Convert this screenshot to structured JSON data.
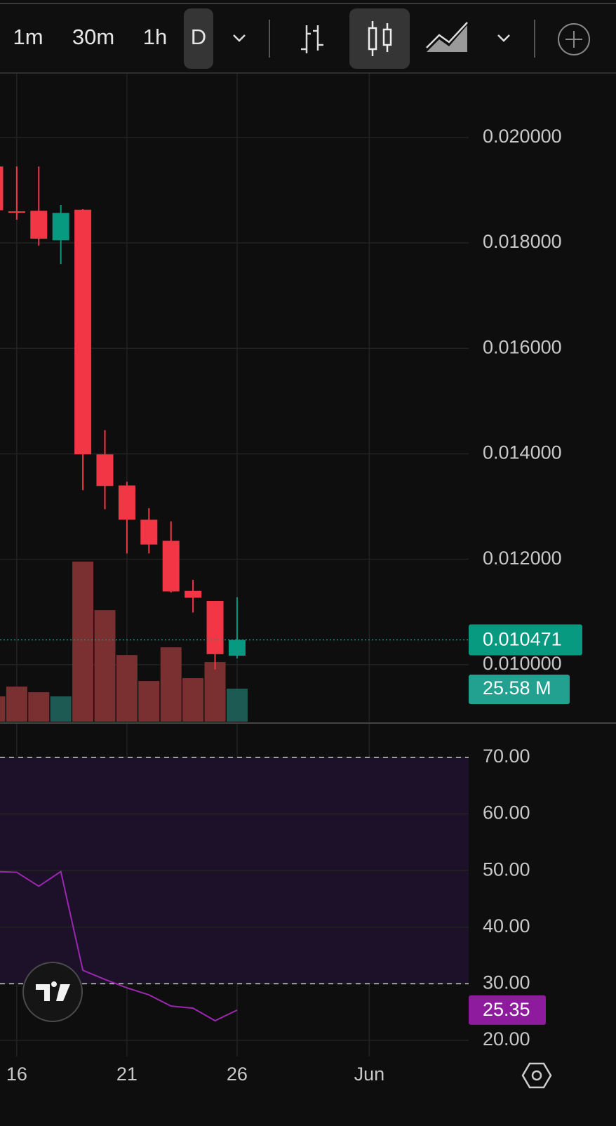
{
  "toolbar": {
    "intervals": [
      "1m",
      "30m",
      "1h",
      "D"
    ],
    "selected_index": 3
  },
  "chart_data": [
    {
      "type": "candlestick",
      "x": [
        15,
        16,
        17,
        18,
        19,
        20,
        21,
        22,
        23,
        24,
        25,
        26
      ],
      "open": [
        0.01945,
        0.0186,
        0.01861,
        0.01805,
        0.01863,
        0.01399,
        0.0134,
        0.01275,
        0.01235,
        0.0114,
        0.01121,
        0.01017
      ],
      "high": [
        0.01945,
        0.01945,
        0.01945,
        0.01872,
        0.01864,
        0.01445,
        0.01347,
        0.01297,
        0.01272,
        0.01161,
        0.01121,
        0.01128
      ],
      "low": [
        0.01862,
        0.01844,
        0.01795,
        0.0176,
        0.01331,
        0.01295,
        0.01211,
        0.01211,
        0.01137,
        0.01099,
        0.00991,
        0.01012
      ],
      "close": [
        0.01862,
        0.01858,
        0.01808,
        0.01857,
        0.01399,
        0.01339,
        0.01275,
        0.01228,
        0.01139,
        0.01127,
        0.0102,
        0.010471
      ],
      "volume": [
        19.6,
        27.2,
        22.8,
        19.6,
        124,
        86.4,
        51.6,
        31.5,
        57.6,
        33.7,
        46.2,
        25.58
      ],
      "last_volume_label": "25.58 M",
      "up_color": "#089981",
      "down_color": "#f23645",
      "volume_up_color": "#1d5a54",
      "volume_down_color": "#7a2f31",
      "xlim": [
        15.24,
        36.51
      ],
      "xticks": [
        16,
        21,
        26,
        {
          "value": 32,
          "label": "Jun"
        }
      ],
      "ylim": [
        0.00892,
        0.02121
      ],
      "yticks": [
        {
          "value": 0.01,
          "label": "0.010000"
        },
        {
          "value": 0.012,
          "label": "0.012000"
        },
        {
          "value": 0.014,
          "label": "0.014000"
        },
        {
          "value": 0.016,
          "label": "0.016000"
        },
        {
          "value": 0.018,
          "label": "0.018000"
        },
        {
          "value": 0.02,
          "label": "0.020000"
        }
      ],
      "grid": true
    },
    {
      "type": "line",
      "x": [
        15,
        16,
        17,
        18,
        19,
        20,
        21,
        22,
        23,
        24,
        25,
        26
      ],
      "values": [
        49.83,
        49.7,
        47.23,
        49.83,
        32.38,
        30.77,
        29.28,
        28.04,
        26.06,
        25.69,
        23.47,
        25.35
      ],
      "color": "#9c27b0",
      "label_color": "#8e1a9e",
      "band": [
        30,
        70
      ],
      "band_color": "#1c1129",
      "xlim": [
        15.24,
        36.51
      ],
      "ylim": [
        17.15,
        75.94
      ],
      "yticks": [
        {
          "value": 20,
          "label": "20.00"
        },
        {
          "value": 30,
          "label": "30.00"
        },
        {
          "value": 40,
          "label": "40.00"
        },
        {
          "value": 50,
          "label": "50.00"
        },
        {
          "value": 60,
          "label": "60.00"
        },
        {
          "value": 70,
          "label": "70.00"
        }
      ],
      "grid": true
    }
  ]
}
